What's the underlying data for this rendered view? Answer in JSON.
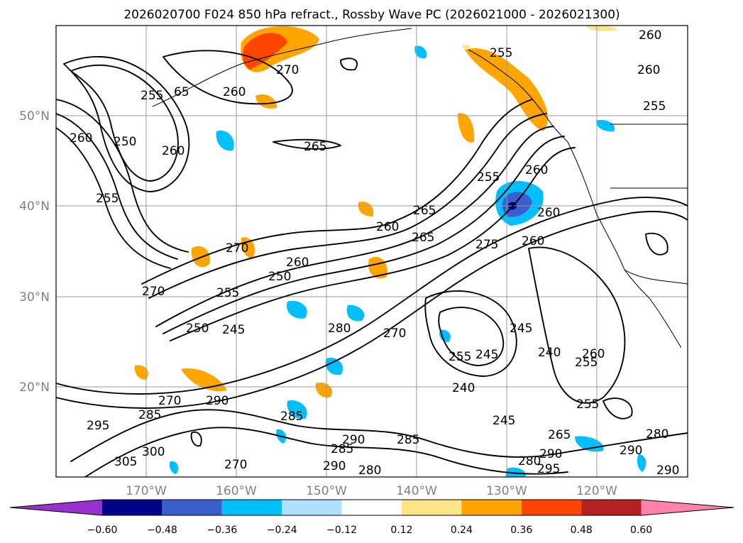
{
  "title": "2026020700 F024 850 hPa refract., Rossby Wave PC (2026021000 - 2026021300)",
  "lat_labels": [
    "50°N",
    "40°N",
    "30°N",
    "20°N"
  ],
  "lon_labels": [
    "170°W",
    "160°W",
    "150°W",
    "140°W",
    "130°W",
    "120°W"
  ],
  "colorbar": {
    "ticks": [
      "−0.60",
      "−0.48",
      "−0.36",
      "−0.24",
      "−0.12",
      "0.12",
      "0.24",
      "0.36",
      "0.48",
      "0.60"
    ],
    "colors": [
      "#9932cc",
      "#00008b",
      "#3a5fcd",
      "#00bfff",
      "#b0e2ff",
      "#ffffff",
      "#ffe58a",
      "#ffa500",
      "#ff4500",
      "#b22222",
      "#ff82ab"
    ]
  },
  "contour_labels": [
    "260",
    "270",
    "255",
    "65",
    "260",
    "265",
    "260",
    "250",
    "260",
    "255",
    "260",
    "255",
    "260",
    "255",
    "270",
    "255",
    "260",
    "265",
    "260",
    "265",
    "260",
    "275",
    "260",
    "250",
    "270",
    "250",
    "255",
    "245",
    "280",
    "270",
    "255",
    "245",
    "240",
    "245",
    "260",
    "255",
    "240",
    "270",
    "290",
    "245",
    "255",
    "295",
    "285",
    "305",
    "300",
    "270",
    "285",
    "290",
    "285",
    "290",
    "280",
    "285",
    "265",
    "290",
    "295",
    "290",
    "280",
    "280",
    "290"
  ],
  "shading_colors": {
    "orange": "#ffa500",
    "yellow": "#ffe58a",
    "red": "#ff4500",
    "cyan": "#00bfff",
    "lightblue": "#b0e2ff",
    "blue": "#3a5fcd",
    "purple": "#9932cc"
  }
}
